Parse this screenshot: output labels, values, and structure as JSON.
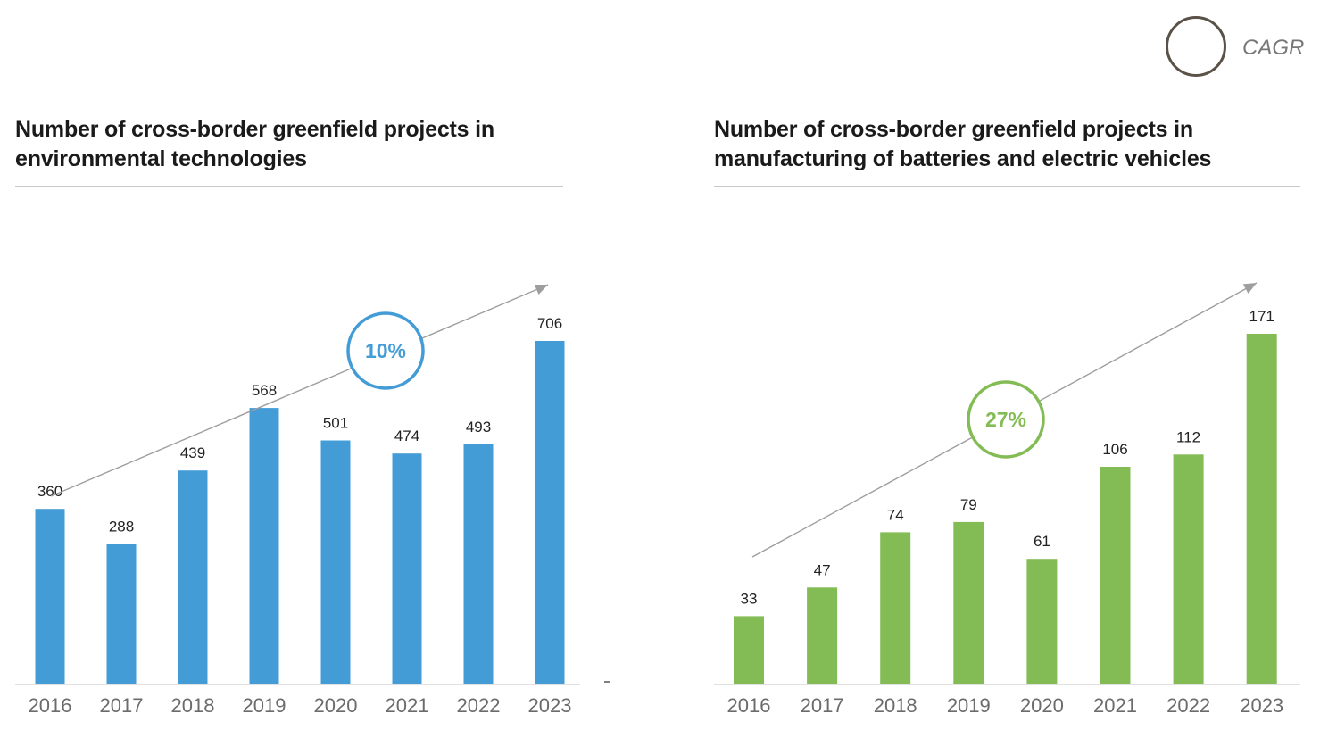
{
  "legend": {
    "label": "CAGR",
    "circle_color": "#5a5147"
  },
  "charts": [
    {
      "title_line1": "Number of cross-border greenfield projects in",
      "title_line2": "environmental technologies"
    },
    {
      "title_line1": "Number of cross-border greenfield projects in",
      "title_line2": "manufacturing of batteries and electric vehicles"
    }
  ],
  "chart_data": [
    {
      "type": "bar",
      "title": "Number of cross-border greenfield projects in environmental technologies",
      "categories": [
        "2016",
        "2017",
        "2018",
        "2019",
        "2020",
        "2021",
        "2022",
        "2023"
      ],
      "values": [
        360,
        288,
        439,
        568,
        501,
        474,
        493,
        706
      ],
      "cagr_label": "10%",
      "color": "#439cd6",
      "xlabel": "",
      "ylabel": "",
      "ylim": [
        0,
        706
      ]
    },
    {
      "type": "bar",
      "title": "Number of cross-border greenfield projects in manufacturing of batteries and electric vehicles",
      "categories": [
        "2016",
        "2017",
        "2018",
        "2019",
        "2020",
        "2021",
        "2022",
        "2023"
      ],
      "values": [
        33,
        47,
        74,
        79,
        61,
        106,
        112,
        171
      ],
      "cagr_label": "27%",
      "color": "#83bc55",
      "xlabel": "",
      "ylabel": "",
      "ylim": [
        0,
        171
      ]
    }
  ]
}
